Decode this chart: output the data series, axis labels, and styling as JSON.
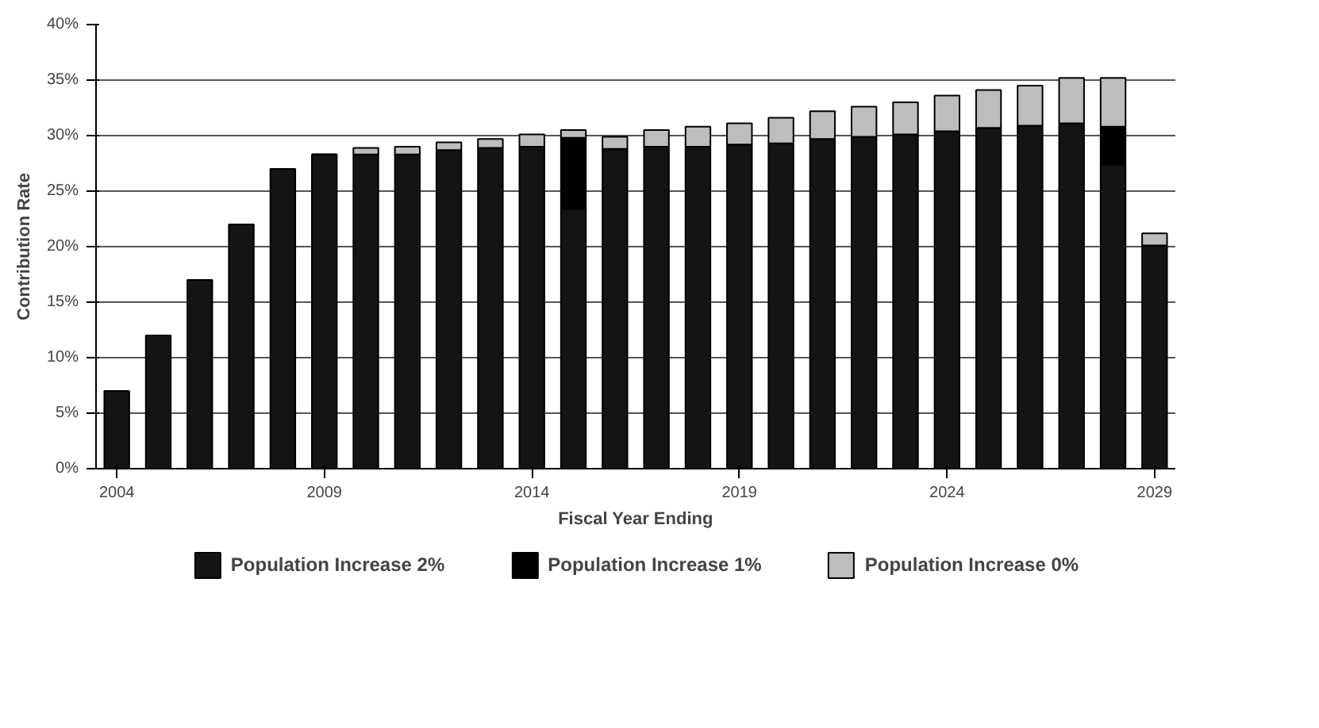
{
  "chart_data": {
    "type": "bar",
    "stacked": true,
    "xlabel": "Fiscal Year Ending",
    "ylabel": "Contribution Rate",
    "x": [
      2004,
      2005,
      2006,
      2007,
      2008,
      2009,
      2010,
      2011,
      2012,
      2013,
      2014,
      2015,
      2016,
      2017,
      2018,
      2019,
      2020,
      2021,
      2022,
      2023,
      2024,
      2025,
      2026,
      2027,
      2028,
      2029
    ],
    "series": [
      {
        "name": "Population Increase 2%",
        "color": "#141414",
        "values": [
          7,
          12,
          17,
          22,
          27,
          28.3,
          28.3,
          28.3,
          28.7,
          28.9,
          29.0,
          23.4,
          28.8,
          29.0,
          29.0,
          29.2,
          29.3,
          29.7,
          29.9,
          30.1,
          30.4,
          30.7,
          30.9,
          31.1,
          27.4,
          20.1
        ]
      },
      {
        "name": "Population Increase 1%",
        "color": "#000000",
        "values": [
          0,
          0,
          0,
          0,
          0,
          0,
          0,
          0,
          0,
          0,
          0,
          6.4,
          0,
          0,
          0,
          0,
          0,
          0,
          0,
          0,
          0,
          0,
          0,
          0,
          3.4,
          0
        ]
      },
      {
        "name": "Population Increase 0%",
        "color": "#bdbdbd",
        "values": [
          0,
          0,
          0,
          0,
          0,
          0,
          0.6,
          0.7,
          0.7,
          0.8,
          1.1,
          0.7,
          1.1,
          1.5,
          1.8,
          1.9,
          2.3,
          2.5,
          2.7,
          2.9,
          3.2,
          3.4,
          3.6,
          4.1,
          4.4,
          1.1
        ]
      }
    ],
    "xlim": [
      2003.5,
      2029.5
    ],
    "xticks": [
      2004,
      2009,
      2014,
      2019,
      2024,
      2029
    ],
    "ylim": [
      0,
      40
    ],
    "yticks": [
      {
        "value": 0,
        "label": "0%"
      },
      {
        "value": 5,
        "label": "5%"
      },
      {
        "value": 10,
        "label": "10%"
      },
      {
        "value": 15,
        "label": "15%"
      },
      {
        "value": 20,
        "label": "20%"
      },
      {
        "value": 25,
        "label": "25%"
      },
      {
        "value": 30,
        "label": "30%"
      },
      {
        "value": 35,
        "label": "35%"
      },
      {
        "value": 40,
        "label": "40%"
      }
    ],
    "grid": "y",
    "legend": "bottom"
  }
}
